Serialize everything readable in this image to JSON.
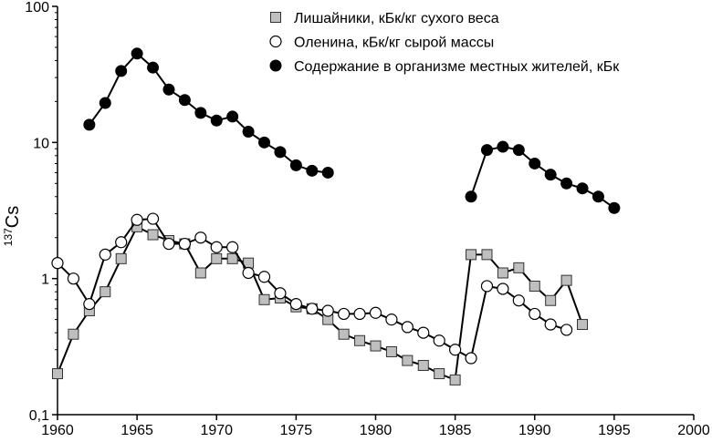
{
  "chart_data": {
    "type": "line",
    "title": "",
    "xlabel": "",
    "ylabel": {
      "superscript": "137",
      "base": "Cs"
    },
    "yscale": "log",
    "xlim": [
      1960,
      2000
    ],
    "ylim": [
      0.1,
      100
    ],
    "x_ticks": [
      1960,
      1965,
      1970,
      1975,
      1980,
      1985,
      1990,
      1995,
      2000
    ],
    "x_tick_labels": [
      "1960",
      "1965",
      "1970",
      "1975",
      "1980",
      "1985",
      "1990",
      "1995",
      "2000"
    ],
    "y_ticks": [
      0.1,
      1,
      10,
      100
    ],
    "y_tick_labels": [
      "0,1",
      "1",
      "10",
      "100"
    ],
    "legend_position": "top-right",
    "series": [
      {
        "name": "Лишайники, кБк/кг сухого веса",
        "marker": "square",
        "color": "#bfbfbf",
        "points": [
          [
            1960,
            0.2
          ],
          [
            1961,
            0.39
          ],
          [
            1962,
            0.58
          ],
          [
            1963,
            0.8
          ],
          [
            1964,
            1.4
          ],
          [
            1965,
            2.4
          ],
          [
            1966,
            2.1
          ],
          [
            1967,
            1.9
          ],
          [
            1968,
            1.8
          ],
          [
            1969,
            1.1
          ],
          [
            1970,
            1.4
          ],
          [
            1971,
            1.4
          ],
          [
            1972,
            1.3
          ],
          [
            1973,
            0.7
          ],
          [
            1974,
            0.72
          ],
          [
            1975,
            0.62
          ],
          [
            1976,
            0.6
          ],
          [
            1977,
            0.5
          ],
          [
            1978,
            0.39
          ],
          [
            1979,
            0.35
          ],
          [
            1980,
            0.32
          ],
          [
            1981,
            0.29
          ],
          [
            1982,
            0.25
          ],
          [
            1983,
            0.23
          ],
          [
            1984,
            0.2
          ],
          [
            1985,
            0.18
          ],
          [
            1986,
            1.5
          ],
          [
            1987,
            1.5
          ],
          [
            1988,
            1.1
          ],
          [
            1989,
            1.2
          ],
          [
            1990,
            0.88
          ],
          [
            1991,
            0.69
          ],
          [
            1992,
            0.97
          ],
          [
            1993,
            0.46
          ]
        ]
      },
      {
        "name": "Оленина, кБк/кг сырой массы",
        "marker": "circle-open",
        "color": "#ffffff",
        "points": [
          [
            1960,
            1.3
          ],
          [
            1961,
            1.0
          ],
          [
            1962,
            0.65
          ],
          [
            1963,
            1.5
          ],
          [
            1964,
            1.85
          ],
          [
            1965,
            2.7
          ],
          [
            1966,
            2.75
          ],
          [
            1967,
            1.8
          ],
          [
            1968,
            1.8
          ],
          [
            1969,
            2.0
          ],
          [
            1970,
            1.7
          ],
          [
            1971,
            1.7
          ],
          [
            1972,
            1.1
          ],
          [
            1973,
            1.03
          ],
          [
            1974,
            0.78
          ],
          [
            1975,
            0.65
          ],
          [
            1976,
            0.6
          ],
          [
            1977,
            0.58
          ],
          [
            1978,
            0.55
          ],
          [
            1979,
            0.55
          ],
          [
            1980,
            0.56
          ],
          [
            1981,
            0.5
          ],
          [
            1982,
            0.44
          ],
          [
            1983,
            0.4
          ],
          [
            1984,
            0.35
          ],
          [
            1985,
            0.3
          ],
          [
            1986,
            0.26
          ],
          [
            1987,
            0.88
          ],
          [
            1988,
            0.84
          ],
          [
            1989,
            0.69
          ],
          [
            1990,
            0.55
          ],
          [
            1991,
            0.46
          ],
          [
            1992,
            0.42
          ]
        ]
      },
      {
        "name": "Содержание в организме местных жителей, кБк",
        "marker": "circle-filled",
        "color": "#000000",
        "segments": [
          [
            [
              1962,
              13.5
            ],
            [
              1963,
              19.5
            ],
            [
              1964,
              33.5
            ],
            [
              1965,
              45.0
            ],
            [
              1966,
              35.5
            ],
            [
              1967,
              24.5
            ],
            [
              1968,
              20.5
            ],
            [
              1969,
              16.5
            ],
            [
              1970,
              14.5
            ],
            [
              1971,
              15.5
            ],
            [
              1972,
              12.0
            ],
            [
              1973,
              10.0
            ],
            [
              1974,
              8.5
            ],
            [
              1975,
              6.8
            ],
            [
              1976,
              6.2
            ],
            [
              1977,
              6.0
            ]
          ],
          [
            [
              1986,
              4.0
            ],
            [
              1987,
              8.8
            ],
            [
              1988,
              9.3
            ],
            [
              1989,
              8.8
            ],
            [
              1990,
              7.0
            ],
            [
              1991,
              5.8
            ],
            [
              1992,
              5.0
            ],
            [
              1993,
              4.6
            ],
            [
              1994,
              4.0
            ],
            [
              1995,
              3.3
            ]
          ]
        ]
      }
    ]
  }
}
